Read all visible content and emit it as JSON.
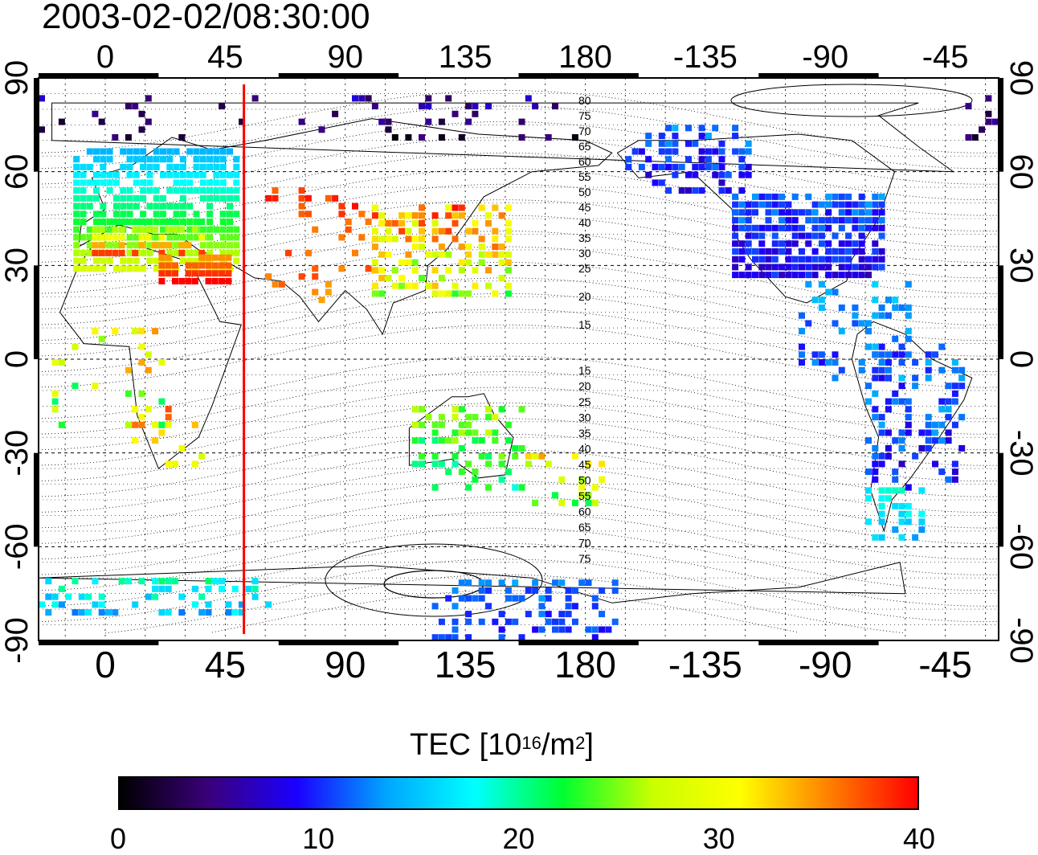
{
  "title": "2003-02-02/08:30:00",
  "colors": {
    "frame": "#000000",
    "meridian_marker": "#ff0000",
    "gradient": [
      "#000000",
      "#3a007a",
      "#1b00ff",
      "#00a4ff",
      "#00ffff",
      "#00ff30",
      "#c8ff00",
      "#ffff00",
      "#ff8000",
      "#ff0000"
    ]
  },
  "map": {
    "top_axis_labels": [
      "0",
      "45",
      "90",
      "135",
      "180",
      "-135",
      "-90",
      "-45"
    ],
    "bottom_axis_labels": [
      "0",
      "45",
      "90",
      "135",
      "180",
      "-135",
      "-90",
      "-45"
    ],
    "left_axis_labels": [
      "90",
      "60",
      "30",
      "0",
      "-30",
      "-60",
      "-90"
    ],
    "right_axis_labels": [
      "90",
      "60",
      "30",
      "0",
      "-30",
      "-60",
      "-90"
    ],
    "marker_longitude": 52,
    "contour_labels_north": [
      "80",
      "75",
      "70",
      "65",
      "60",
      "55",
      "50",
      "45",
      "40",
      "35",
      "30",
      "25",
      "20",
      "15"
    ],
    "contour_labels_south": [
      "15",
      "20",
      "25",
      "30",
      "35",
      "40",
      "45",
      "50",
      "55",
      "60",
      "65",
      "70",
      "75"
    ]
  },
  "colorbar": {
    "title_prefix": "TEC  [10",
    "title_exp": "16",
    "title_mid": "/m",
    "title_exp2": "2",
    "title_suffix": "]",
    "ticks": [
      "0",
      "10",
      "20",
      "30",
      "40"
    ],
    "range": [
      0,
      40
    ]
  }
}
